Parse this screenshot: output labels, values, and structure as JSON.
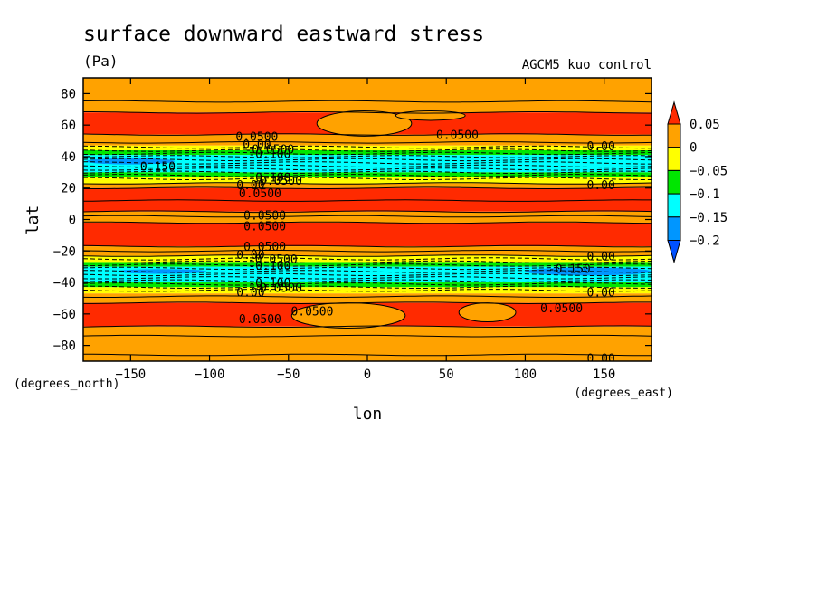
{
  "chart_data": {
    "type": "contour",
    "title": "surface downward eastward stress",
    "units": "(Pa)",
    "model": "AGCM5_kuo_control",
    "xlabel": "lon",
    "ylabel": "lat",
    "x_units": "(degrees_east)",
    "y_units": "(degrees_north)",
    "xlim": [
      -180,
      180
    ],
    "ylim": [
      -90,
      90
    ],
    "x_ticks": [
      -150,
      -100,
      -50,
      0,
      50,
      100,
      150
    ],
    "y_ticks": [
      -80,
      -60,
      -40,
      -20,
      0,
      20,
      40,
      60,
      80
    ],
    "x_tick_labels": [
      "−150",
      "−100",
      "−50",
      "0",
      "50",
      "100",
      "150"
    ],
    "y_tick_labels": [
      "−80",
      "−60",
      "−40",
      "−20",
      "0",
      "20",
      "40",
      "60",
      "80"
    ],
    "colorbar": {
      "levels": [
        0.05,
        0,
        -0.05,
        -0.1,
        -0.15,
        -0.2
      ],
      "labels": [
        "0.05",
        "0",
        "−0.05",
        "−0.1",
        "−0.15",
        "−0.2"
      ],
      "colors": {
        "above_0.05": "#ff2a00",
        "0_to_0.05": "#ffa200",
        "-0.05_to_0": "#ffff00",
        "-0.1_to_-0.05": "#00e600",
        "-0.15_to_-0.1": "#00ffff",
        "-0.2_to_-0.15": "#0096ff",
        "below_-0.2": "#0050ff"
      }
    },
    "zonal_bands": [
      {
        "lat_top": 90,
        "lat_bottom": 68,
        "value_class": "0_to_0.05"
      },
      {
        "lat_top": 68,
        "lat_bottom": 54,
        "value_class": "above_0.05"
      },
      {
        "lat_top": 54,
        "lat_bottom": 47,
        "value_class": "0_to_0.05"
      },
      {
        "lat_top": 47,
        "lat_bottom": 44,
        "value_class": "-0.05_to_0"
      },
      {
        "lat_top": 44,
        "lat_bottom": 41,
        "value_class": "-0.1_to_-0.05"
      },
      {
        "lat_top": 41,
        "lat_bottom": 30,
        "value_class": "-0.15_to_-0.1"
      },
      {
        "lat_top": 30,
        "lat_bottom": 27,
        "value_class": "-0.1_to_-0.05"
      },
      {
        "lat_top": 27,
        "lat_bottom": 23,
        "value_class": "-0.05_to_0"
      },
      {
        "lat_top": 23,
        "lat_bottom": 20,
        "value_class": "0_to_0.05"
      },
      {
        "lat_top": 20,
        "lat_bottom": 5,
        "value_class": "above_0.05"
      },
      {
        "lat_top": 5,
        "lat_bottom": -2,
        "value_class": "0_to_0.05"
      },
      {
        "lat_top": -2,
        "lat_bottom": -17,
        "value_class": "above_0.05"
      },
      {
        "lat_top": -17,
        "lat_bottom": -23,
        "value_class": "0_to_0.05"
      },
      {
        "lat_top": -23,
        "lat_bottom": -27,
        "value_class": "-0.05_to_0"
      },
      {
        "lat_top": -27,
        "lat_bottom": -30,
        "value_class": "-0.1_to_-0.05"
      },
      {
        "lat_top": -30,
        "lat_bottom": -40,
        "value_class": "-0.15_to_-0.1"
      },
      {
        "lat_top": -40,
        "lat_bottom": -43,
        "value_class": "-0.1_to_-0.05"
      },
      {
        "lat_top": -43,
        "lat_bottom": -47,
        "value_class": "-0.05_to_0"
      },
      {
        "lat_top": -47,
        "lat_bottom": -53,
        "value_class": "0_to_0.05"
      },
      {
        "lat_top": -53,
        "lat_bottom": -68,
        "value_class": "above_0.05"
      },
      {
        "lat_top": -68,
        "lat_bottom": -90,
        "value_class": "0_to_0.05"
      }
    ],
    "patches": [
      {
        "lon": -150,
        "lat": 37,
        "lon_half": 28,
        "lat_half": 2,
        "value_class": "-0.2_to_-0.15"
      },
      {
        "lon": 140,
        "lat": -33,
        "lon_half": 40,
        "lat_half": 2.5,
        "value_class": "-0.2_to_-0.15"
      },
      {
        "lon": -130,
        "lat": -33,
        "lon_half": 28,
        "lat_half": 1.5,
        "value_class": "-0.2_to_-0.15"
      }
    ],
    "gaps": [
      {
        "lon": -2,
        "lat": 61,
        "lon_half": 30,
        "lat_half": 8,
        "value_class": "0_to_0.05"
      },
      {
        "lon": 40,
        "lat": 66,
        "lon_half": 22,
        "lat_half": 3,
        "value_class": "0_to_0.05"
      },
      {
        "lon": -12,
        "lat": -61,
        "lon_half": 36,
        "lat_half": 8,
        "value_class": "0_to_0.05"
      },
      {
        "lon": 76,
        "lat": -59,
        "lon_half": 18,
        "lat_half": 6,
        "value_class": "0_to_0.05"
      }
    ],
    "solid_contours_lat": [
      68,
      54,
      49,
      23,
      20,
      12,
      5,
      2,
      -2,
      -17,
      -20,
      -23,
      -49,
      -53,
      -68,
      -74,
      75,
      -86
    ],
    "dashed_contours_lat": [
      46,
      44,
      42,
      40,
      38,
      36,
      34,
      32,
      30,
      28,
      26,
      -25,
      -27,
      -29,
      -31,
      -33,
      -35,
      -37,
      -39,
      -41,
      -43,
      -45
    ],
    "contour_labels": [
      {
        "text": "0.0500",
        "lon": -70,
        "lat": 53
      },
      {
        "text": "0.00",
        "lon": -70,
        "lat": 48
      },
      {
        "text": "-0.0500",
        "lon": -62,
        "lat": 45
      },
      {
        "text": "-0.100",
        "lon": -62,
        "lat": 42
      },
      {
        "text": "-0.150",
        "lon": -135,
        "lat": 34
      },
      {
        "text": "-0.100",
        "lon": -62,
        "lat": 27
      },
      {
        "text": "-0.0500",
        "lon": -57,
        "lat": 25
      },
      {
        "text": "0.00",
        "lon": -74,
        "lat": 22
      },
      {
        "text": "0.0500",
        "lon": -68,
        "lat": 17
      },
      {
        "text": "0.0500",
        "lon": 57,
        "lat": 54
      },
      {
        "text": "0.00",
        "lon": 148,
        "lat": 47
      },
      {
        "text": "0.00",
        "lon": 148,
        "lat": 22
      },
      {
        "text": "0.0500",
        "lon": -65,
        "lat": 3
      },
      {
        "text": "0.0500",
        "lon": -65,
        "lat": -4
      },
      {
        "text": "0.0500",
        "lon": -65,
        "lat": -17
      },
      {
        "text": "0.00",
        "lon": -74,
        "lat": -22
      },
      {
        "text": "-0.0500",
        "lon": -60,
        "lat": -25
      },
      {
        "text": "-0.100",
        "lon": -62,
        "lat": -29
      },
      {
        "text": "-0.100",
        "lon": -62,
        "lat": -40
      },
      {
        "text": "-0.0500",
        "lon": -57,
        "lat": -43
      },
      {
        "text": "0.00",
        "lon": -74,
        "lat": -46
      },
      {
        "text": "0.00",
        "lon": 148,
        "lat": -23
      },
      {
        "text": "-0.150",
        "lon": 128,
        "lat": -31
      },
      {
        "text": "0.00",
        "lon": 148,
        "lat": -46
      },
      {
        "text": "0.0500",
        "lon": -68,
        "lat": -63
      },
      {
        "text": "0.0500",
        "lon": -35,
        "lat": -58
      },
      {
        "text": "0.0500",
        "lon": 123,
        "lat": -56
      },
      {
        "text": "0.00",
        "lon": 148,
        "lat": -88
      }
    ]
  }
}
